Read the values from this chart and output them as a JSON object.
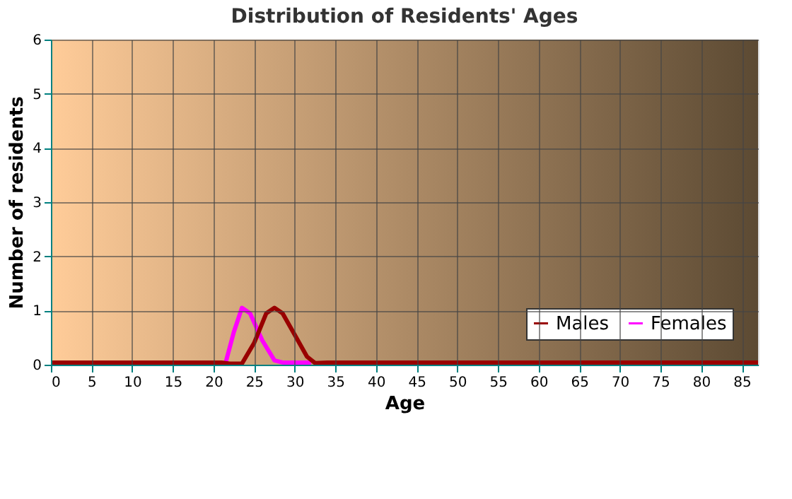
{
  "chart_data": {
    "type": "line",
    "title": "Distribution of Residents' Ages",
    "xlabel": "Age",
    "ylabel": "Number of residents",
    "xlim": [
      0,
      87
    ],
    "xticks": [
      0,
      5,
      10,
      15,
      20,
      25,
      30,
      35,
      40,
      45,
      50,
      55,
      60,
      65,
      70,
      75,
      80,
      85
    ],
    "ylim": [
      0,
      6
    ],
    "yticks": [
      0,
      1,
      2,
      3,
      4,
      5,
      6
    ],
    "grid": true,
    "legend": "bottom right",
    "marker": "none",
    "line_style": "solid",
    "series": [
      {
        "name": "Females",
        "color": "#ff00ff",
        "x": [
          21.5,
          22.5,
          23.5,
          24.5,
          26,
          27.5,
          28.5,
          32
        ],
        "values": [
          0.04,
          0.6,
          1.05,
          0.95,
          0.45,
          0.08,
          0.04,
          0.04
        ]
      },
      {
        "name": "Males",
        "color": "#990000",
        "x": [
          0,
          21,
          22,
          23.5,
          25,
          26.5,
          27.5,
          28.5,
          30,
          31.5,
          32.5,
          34,
          87
        ],
        "values": [
          0.04,
          0.04,
          0.02,
          0.02,
          0.4,
          0.95,
          1.05,
          0.95,
          0.55,
          0.15,
          0.03,
          0.04,
          0.04
        ]
      }
    ]
  }
}
